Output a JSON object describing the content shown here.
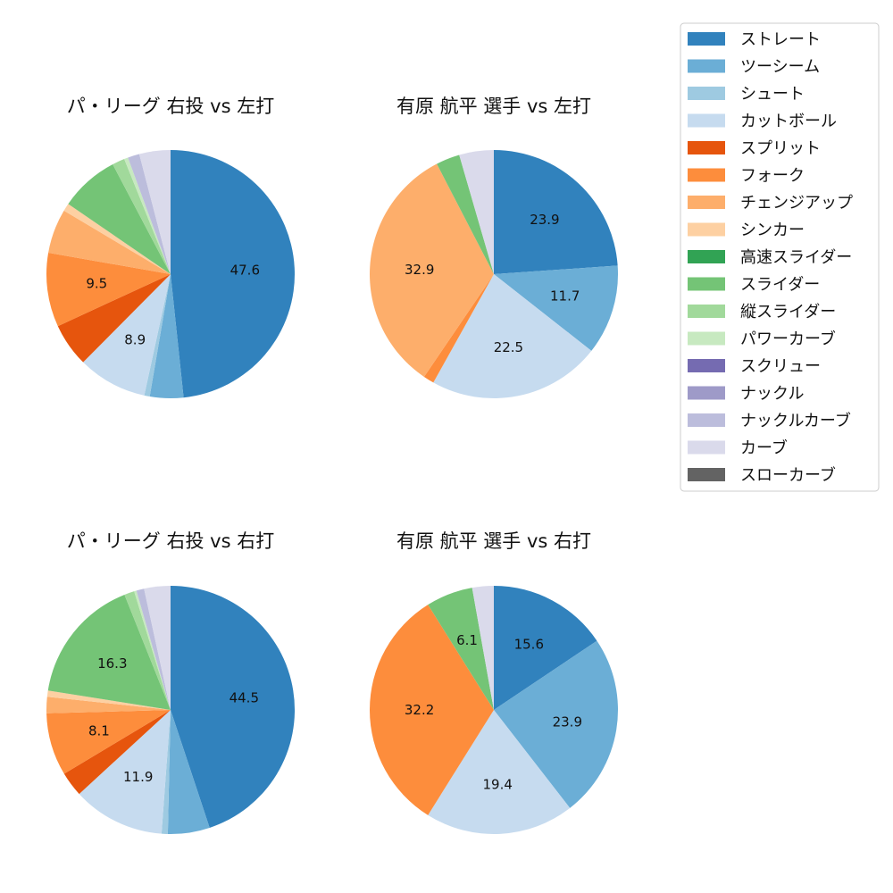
{
  "legend": {
    "entries": [
      {
        "label": "ストレート",
        "color": "#3182bd"
      },
      {
        "label": "ツーシーム",
        "color": "#6baed6"
      },
      {
        "label": "シュート",
        "color": "#9ecae1"
      },
      {
        "label": "カットボール",
        "color": "#c6dbef"
      },
      {
        "label": "スプリット",
        "color": "#e6550d"
      },
      {
        "label": "フォーク",
        "color": "#fd8d3c"
      },
      {
        "label": "チェンジアップ",
        "color": "#fdae6b"
      },
      {
        "label": "シンカー",
        "color": "#fdd0a2"
      },
      {
        "label": "高速スライダー",
        "color": "#31a354"
      },
      {
        "label": "スライダー",
        "color": "#74c476"
      },
      {
        "label": "縦スライダー",
        "color": "#a1d99b"
      },
      {
        "label": "パワーカーブ",
        "color": "#c7e9c0"
      },
      {
        "label": "スクリュー",
        "color": "#756bb1"
      },
      {
        "label": "ナックル",
        "color": "#9e9ac8"
      },
      {
        "label": "ナックルカーブ",
        "color": "#bcbddc"
      },
      {
        "label": "カーブ",
        "color": "#dadaeb"
      },
      {
        "label": "スローカーブ",
        "color": "#636363"
      }
    ]
  },
  "chart_data": [
    {
      "type": "pie",
      "title": "パ・リーグ 右投 vs 左打",
      "start_angle_deg": 90,
      "direction": "clockwise",
      "label_threshold": 8,
      "slices": [
        {
          "label": "ストレート",
          "value": 47.6,
          "color": "#3182bd"
        },
        {
          "label": "ツーシーム",
          "value": 4.3,
          "color": "#6baed6"
        },
        {
          "label": "シュート",
          "value": 0.7,
          "color": "#9ecae1"
        },
        {
          "label": "カットボール",
          "value": 8.9,
          "color": "#c6dbef"
        },
        {
          "label": "スプリット",
          "value": 5.6,
          "color": "#e6550d"
        },
        {
          "label": "フォーク",
          "value": 9.5,
          "color": "#fd8d3c"
        },
        {
          "label": "チェンジアップ",
          "value": 5.7,
          "color": "#fdae6b"
        },
        {
          "label": "シンカー",
          "value": 1.0,
          "color": "#fdd0a2"
        },
        {
          "label": "スライダー",
          "value": 7.6,
          "color": "#74c476"
        },
        {
          "label": "縦スライダー",
          "value": 1.6,
          "color": "#a1d99b"
        },
        {
          "label": "パワーカーブ",
          "value": 0.5,
          "color": "#c7e9c0"
        },
        {
          "label": "ナックルカーブ",
          "value": 1.5,
          "color": "#bcbddc"
        },
        {
          "label": "カーブ",
          "value": 4.0,
          "color": "#dadaeb"
        }
      ]
    },
    {
      "type": "pie",
      "title": "有原 航平 選手 vs 左打",
      "start_angle_deg": 90,
      "direction": "clockwise",
      "label_threshold": 8,
      "slices": [
        {
          "label": "ストレート",
          "value": 23.9,
          "color": "#3182bd"
        },
        {
          "label": "ツーシーム",
          "value": 11.7,
          "color": "#6baed6"
        },
        {
          "label": "カットボール",
          "value": 22.5,
          "color": "#c6dbef"
        },
        {
          "label": "フォーク",
          "value": 1.4,
          "color": "#fd8d3c"
        },
        {
          "label": "チェンジアップ",
          "value": 32.9,
          "color": "#fdae6b"
        },
        {
          "label": "スライダー",
          "value": 3.1,
          "color": "#74c476"
        },
        {
          "label": "カーブ",
          "value": 4.5,
          "color": "#dadaeb"
        }
      ]
    },
    {
      "type": "pie",
      "title": "パ・リーグ 右投 vs 右打",
      "start_angle_deg": 90,
      "direction": "clockwise",
      "label_threshold": 8,
      "slices": [
        {
          "label": "ストレート",
          "value": 44.5,
          "color": "#3182bd"
        },
        {
          "label": "ツーシーム",
          "value": 5.4,
          "color": "#6baed6"
        },
        {
          "label": "シュート",
          "value": 0.8,
          "color": "#9ecae1"
        },
        {
          "label": "カットボール",
          "value": 11.9,
          "color": "#c6dbef"
        },
        {
          "label": "スプリット",
          "value": 3.2,
          "color": "#e6550d"
        },
        {
          "label": "フォーク",
          "value": 8.1,
          "color": "#fd8d3c"
        },
        {
          "label": "チェンジアップ",
          "value": 2.1,
          "color": "#fdae6b"
        },
        {
          "label": "シンカー",
          "value": 0.8,
          "color": "#fdd0a2"
        },
        {
          "label": "スライダー",
          "value": 16.3,
          "color": "#74c476"
        },
        {
          "label": "縦スライダー",
          "value": 1.3,
          "color": "#a1d99b"
        },
        {
          "label": "パワーカーブ",
          "value": 0.3,
          "color": "#c7e9c0"
        },
        {
          "label": "ナックルカーブ",
          "value": 1.0,
          "color": "#bcbddc"
        },
        {
          "label": "カーブ",
          "value": 3.4,
          "color": "#dadaeb"
        }
      ]
    },
    {
      "type": "pie",
      "title": "有原 航平 選手 vs 右打",
      "start_angle_deg": 90,
      "direction": "clockwise",
      "label_threshold": 5,
      "slices": [
        {
          "label": "ストレート",
          "value": 15.6,
          "color": "#3182bd"
        },
        {
          "label": "ツーシーム",
          "value": 23.9,
          "color": "#6baed6"
        },
        {
          "label": "カットボール",
          "value": 19.4,
          "color": "#c6dbef"
        },
        {
          "label": "フォーク",
          "value": 32.2,
          "color": "#fd8d3c"
        },
        {
          "label": "スライダー",
          "value": 6.1,
          "color": "#74c476"
        },
        {
          "label": "カーブ",
          "value": 2.8,
          "color": "#dadaeb"
        }
      ]
    }
  ]
}
